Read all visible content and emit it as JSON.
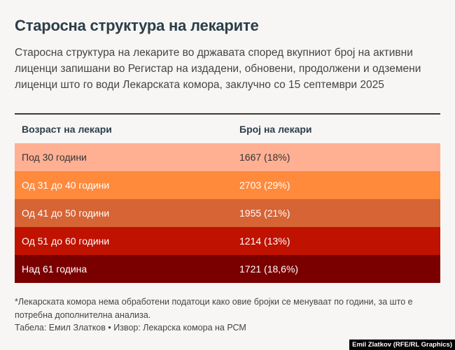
{
  "title": "Старосна структура на лекарите",
  "subtitle": "Старосна структура на лекарите во државата според вкупниот број на активни лиценци запишани во Регистар на издадени, обновени, продолжени и одземени лиценци што го води Лекарската комора, заклучно со 15 септември 2025",
  "table": {
    "headers": [
      "Возраст на лекари",
      "Број на лекари"
    ],
    "rows": [
      {
        "age": "Под 30 години",
        "count": "1667 (18%)",
        "bg": "#ffb092",
        "fg": "#333333"
      },
      {
        "age": "Од 31 до 40 години",
        "count": "2703 (29%)",
        "bg": "#ff8a3c",
        "fg": "#ffffff"
      },
      {
        "age": "Од 41 до 50 години",
        "count": "1955 (21%)",
        "bg": "#d66435",
        "fg": "#ffffff"
      },
      {
        "age": "Од 51 до 60 години",
        "count": "1214 (13%)",
        "bg": "#bf1200",
        "fg": "#ffffff"
      },
      {
        "age": "Над 61 година",
        "count": "1721 (18,6%)",
        "bg": "#7a0000",
        "fg": "#ffffff"
      }
    ]
  },
  "footnote": "*Лекарската комора нема обработени податоци како овие бројки се менуваат по години, за што е потребна дополнителна анализа.",
  "source": "Табела: Емил Златков • Извор: Лекарска комора на РСМ",
  "credit": "Emil Zlatkov (RFE/RL Graphics)"
}
